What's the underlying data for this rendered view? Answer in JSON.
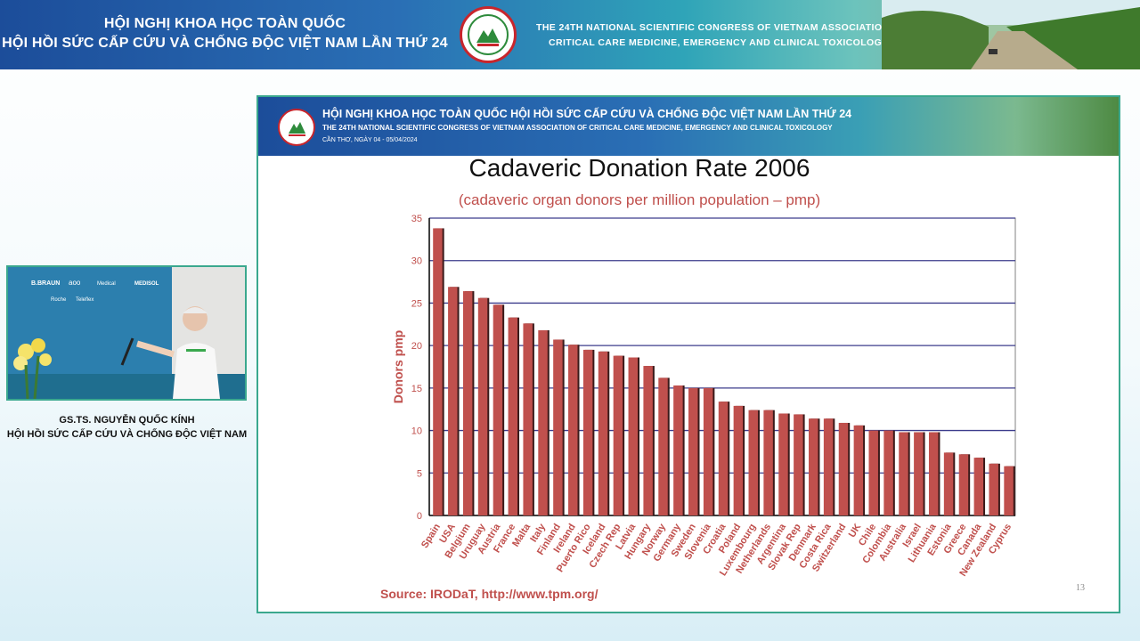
{
  "banner": {
    "title_line1": "HỘI NGHỊ KHOA HỌC TOÀN QUỐC",
    "title_line2": "HỘI HỒI SỨC CẤP CỨU VÀ CHỐNG ĐỘC VIỆT NAM LẦN THỨ 24",
    "en_line1": "THE 24TH NATIONAL SCIENTIFIC CONGRESS OF VIETNAM ASSOCIATION OF",
    "en_line2": "CRITICAL CARE MEDICINE, EMERGENCY AND CLINICAL TOXICOLOGY",
    "colors": {
      "primary": "#1c4d9a",
      "accent": "#3aa88e",
      "logo_ring": "#c8252c"
    }
  },
  "speaker": {
    "name": "GS.TS. NGUYỄN QUỐC KÍNH",
    "organization": "HỘI HỒI SỨC CẤP CỨU VÀ CHỐNG ĐỘC VIỆT NAM",
    "sponsors": [
      "B.BRAUN",
      "ΛΟΩ",
      "Medical",
      "MEDISOL",
      "Roche",
      "Teleflex"
    ]
  },
  "slide": {
    "header_line1": "HỘI NGHỊ KHOA HỌC TOÀN QUỐC HỘI HỒI SỨC CẤP CỨU VÀ CHỐNG ĐỘC VIỆT NAM LẦN THỨ 24",
    "header_line2": "THE 24TH NATIONAL SCIENTIFIC CONGRESS OF VIETNAM ASSOCIATION OF CRITICAL CARE MEDICINE, EMERGENCY AND CLINICAL TOXICOLOGY",
    "header_line3": "CẦN THƠ, NGÀY 04 - 05/04/2024",
    "source": "Source: IRODaT, http://www.tpm.org/",
    "page_number": "13"
  },
  "chart_data": {
    "type": "bar",
    "title": "Cadaveric Donation Rate 2006",
    "subtitle": "(cadaveric organ donors per million population – pmp)",
    "xlabel": "",
    "ylabel": "Donors pmp",
    "ylim": [
      0,
      35
    ],
    "yticks": [
      0,
      5,
      10,
      15,
      20,
      25,
      30,
      35
    ],
    "grid": true,
    "bar_color": "#c0504d",
    "label_color": "#c0504d",
    "categories": [
      "Spain",
      "USA",
      "Belgium",
      "Uruguay",
      "Austria",
      "France",
      "Malta",
      "Italy",
      "Finland",
      "Ireland",
      "Puerto Rico",
      "Iceland",
      "Czech Rep",
      "Latvia",
      "Hungary",
      "Norway",
      "Germany",
      "Sweden",
      "Slovenia",
      "Croatia",
      "Poland",
      "Luxembourg",
      "Netherlands",
      "Argentina",
      "Slovak Rep",
      "Denmark",
      "Costa Rica",
      "Switzerland",
      "UK",
      "Chile",
      "Colombia",
      "Australia",
      "Israel",
      "Lithuania",
      "Estonia",
      "Greece",
      "Canada",
      "New Zealand",
      "Cyprus"
    ],
    "values": [
      33.8,
      26.9,
      26.4,
      25.6,
      24.8,
      23.3,
      22.6,
      21.8,
      20.7,
      20.1,
      19.5,
      19.3,
      18.8,
      18.6,
      17.6,
      16.2,
      15.3,
      15.0,
      15.0,
      13.4,
      12.9,
      12.4,
      12.4,
      12.0,
      11.9,
      11.4,
      11.4,
      10.9,
      10.6,
      10.0,
      10.0,
      9.8,
      9.8,
      9.8,
      7.4,
      7.2,
      6.8,
      6.1,
      5.8
    ]
  }
}
